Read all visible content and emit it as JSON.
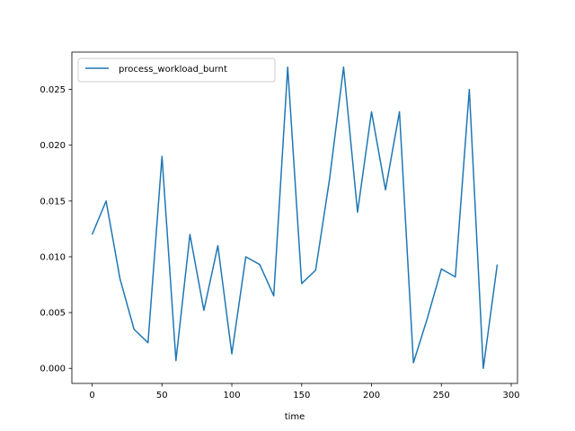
{
  "chart_data": {
    "type": "line",
    "title": "",
    "xlabel": "time",
    "ylabel": "",
    "xlim": [
      -14.5,
      304.5
    ],
    "ylim": [
      -0.00135,
      0.02835
    ],
    "xticks": [
      0,
      50,
      100,
      150,
      200,
      250,
      300
    ],
    "xtick_labels": [
      "0",
      "50",
      "100",
      "150",
      "200",
      "250",
      "300"
    ],
    "yticks": [
      0.0,
      0.005,
      0.01,
      0.015,
      0.02,
      0.025
    ],
    "ytick_labels": [
      "0.000",
      "0.005",
      "0.010",
      "0.015",
      "0.020",
      "0.025"
    ],
    "grid": false,
    "legend_position": "upper-left",
    "series": [
      {
        "name": "process_workload_burnt",
        "color": "#1f77b4",
        "x": [
          0,
          10,
          20,
          30,
          40,
          50,
          60,
          70,
          80,
          90,
          100,
          110,
          120,
          130,
          140,
          150,
          160,
          170,
          180,
          190,
          200,
          210,
          220,
          230,
          240,
          250,
          260,
          270,
          280,
          290
        ],
        "y": [
          0.012,
          0.015,
          0.008,
          0.0035,
          0.0023,
          0.019,
          0.0007,
          0.012,
          0.0052,
          0.011,
          0.0013,
          0.01,
          0.0093,
          0.0065,
          0.027,
          0.0076,
          0.0088,
          0.017,
          0.027,
          0.014,
          0.023,
          0.016,
          0.023,
          0.0005,
          0.0045,
          0.0089,
          0.0082,
          0.025,
          0.0,
          0.0093
        ]
      }
    ]
  }
}
